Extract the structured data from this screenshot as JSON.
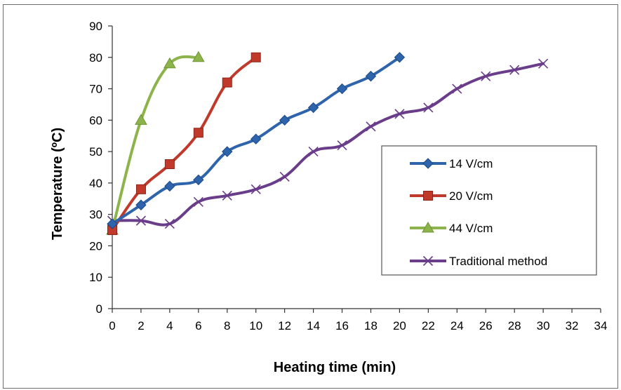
{
  "chart_data": {
    "type": "line",
    "title": "",
    "xlabel": "Heating time (min)",
    "ylabel": "Temperature (ºC)",
    "xlim": [
      0,
      34
    ],
    "ylim": [
      0,
      90
    ],
    "xticks": [
      0,
      2,
      4,
      6,
      8,
      10,
      12,
      14,
      16,
      18,
      20,
      22,
      24,
      26,
      28,
      30,
      32,
      34
    ],
    "yticks": [
      0,
      10,
      20,
      30,
      40,
      50,
      60,
      70,
      80,
      90
    ],
    "grid": false,
    "legend_position": "right",
    "series": [
      {
        "name": "14 V/cm",
        "color": "#2e64ab",
        "marker": "diamond",
        "x": [
          0,
          2,
          4,
          6,
          8,
          10,
          12,
          14,
          16,
          18,
          20
        ],
        "y": [
          27,
          33,
          39,
          41,
          50,
          54,
          60,
          64,
          70,
          74,
          80
        ]
      },
      {
        "name": "20 V/cm",
        "color": "#c0392b",
        "marker": "square",
        "x": [
          0,
          2,
          4,
          6,
          8,
          10
        ],
        "y": [
          25,
          38,
          46,
          56,
          72,
          80
        ]
      },
      {
        "name": "44 V/cm",
        "color": "#8cb44a",
        "marker": "triangle",
        "x": [
          0,
          2,
          4,
          6
        ],
        "y": [
          25,
          60,
          78,
          80
        ]
      },
      {
        "name": "Traditional method",
        "color": "#6a3d8a",
        "marker": "x",
        "x": [
          0,
          2,
          4,
          6,
          8,
          10,
          12,
          14,
          16,
          18,
          20,
          22,
          24,
          26,
          28,
          30
        ],
        "y": [
          28,
          28,
          27,
          34,
          36,
          38,
          42,
          50,
          52,
          58,
          62,
          64,
          70,
          74,
          76,
          78
        ]
      }
    ]
  }
}
